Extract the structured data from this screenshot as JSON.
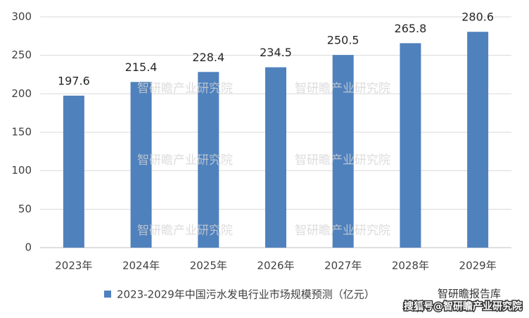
{
  "chart_data": {
    "type": "bar",
    "categories": [
      "2023年",
      "2024年",
      "2025年",
      "2026年",
      "2027年",
      "2028年",
      "2029年"
    ],
    "series": [
      {
        "name": "2023-2029年中国污水发电行业市场规模预测（亿元）",
        "color": "#4f81bd",
        "values": [
          197.6,
          215.4,
          228.4,
          234.5,
          250.5,
          265.8,
          280.6
        ]
      }
    ],
    "ylim": [
      0,
      300
    ],
    "yticks": [
      0,
      50,
      100,
      150,
      200,
      250,
      300
    ],
    "grid": true,
    "legend": "bottom"
  },
  "watermark": "智研瞻产业研究院",
  "source_badge": "智研瞻报告库",
  "footer": "搜狐号@智研瞻产业研究院"
}
